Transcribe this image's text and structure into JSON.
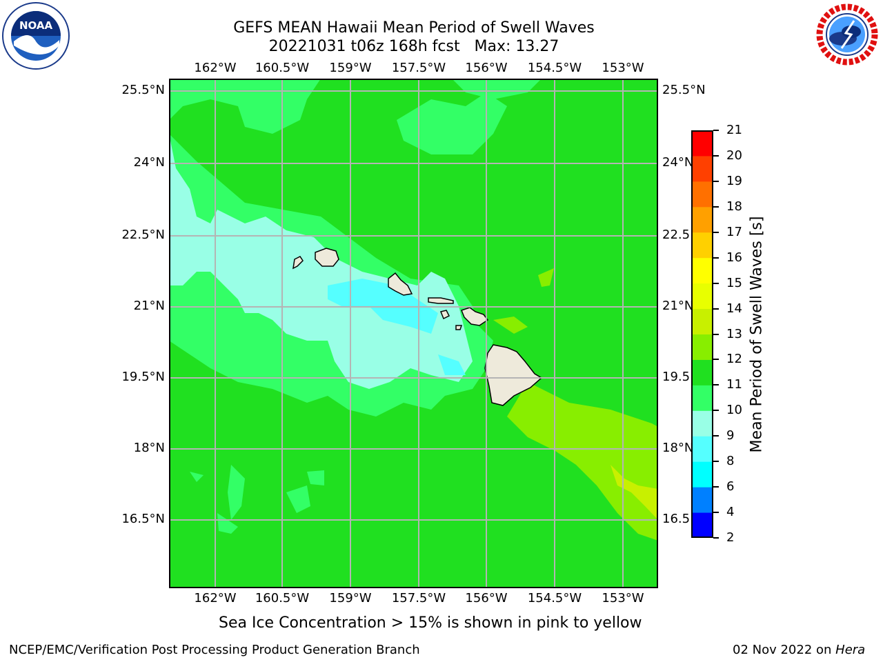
{
  "header": {
    "title_line1": "GEFS MEAN Hawaii Mean Period of Swell Waves",
    "title_line2": "20221031 t06z 168h fcst   Max: 13.27"
  },
  "logos": {
    "left": {
      "name": "noaa-logo",
      "text": "NOAA"
    },
    "right": {
      "name": "nws-logo",
      "ring_text": "NATIONAL WEATHER SERVICE"
    }
  },
  "map": {
    "lon_ticks": [
      "162°W",
      "160.5°W",
      "159°W",
      "157.5°W",
      "156°W",
      "154.5°W",
      "153°W"
    ],
    "lat_ticks_left": [
      "25.5°N",
      "24°N",
      "22.5°N",
      "21°N",
      "19.5°N",
      "18°N",
      "16.5°N"
    ],
    "lat_ticks_right": [
      "25.5°N",
      "24°N",
      "22.5",
      "21°N",
      "19.5",
      "18°N",
      "16.5"
    ],
    "colors": {
      "c9_10": "#7fffd4",
      "c8_9": "#4dffff",
      "c10_11": "#33ff66",
      "c11_12": "#20e020",
      "c12_13": "#88ee00",
      "c13_14": "#c8f000",
      "land": "#eeeadb",
      "grid": "#b4b4b4"
    }
  },
  "colorbar": {
    "label": "Mean Period of Swell Waves [s]",
    "levels": [
      "2",
      "4",
      "6",
      "8",
      "9",
      "10",
      "11",
      "12",
      "13",
      "14",
      "15",
      "16",
      "17",
      "18",
      "19",
      "20",
      "21"
    ],
    "colors": [
      "#0000ff",
      "#0080ff",
      "#00ffff",
      "#55ffff",
      "#99ffe6",
      "#33ff66",
      "#20e020",
      "#88ee00",
      "#c8f000",
      "#e8ff00",
      "#ffff00",
      "#ffd000",
      "#ffa000",
      "#ff7000",
      "#ff4000",
      "#ff0000"
    ]
  },
  "caption": "Sea Ice Concentration > 15% is shown in pink to yellow",
  "footer": {
    "left": "NCEP/EMC/Verification Post Processing Product Generation Branch",
    "date": "02 Nov 2022 on ",
    "host": "Hera"
  }
}
